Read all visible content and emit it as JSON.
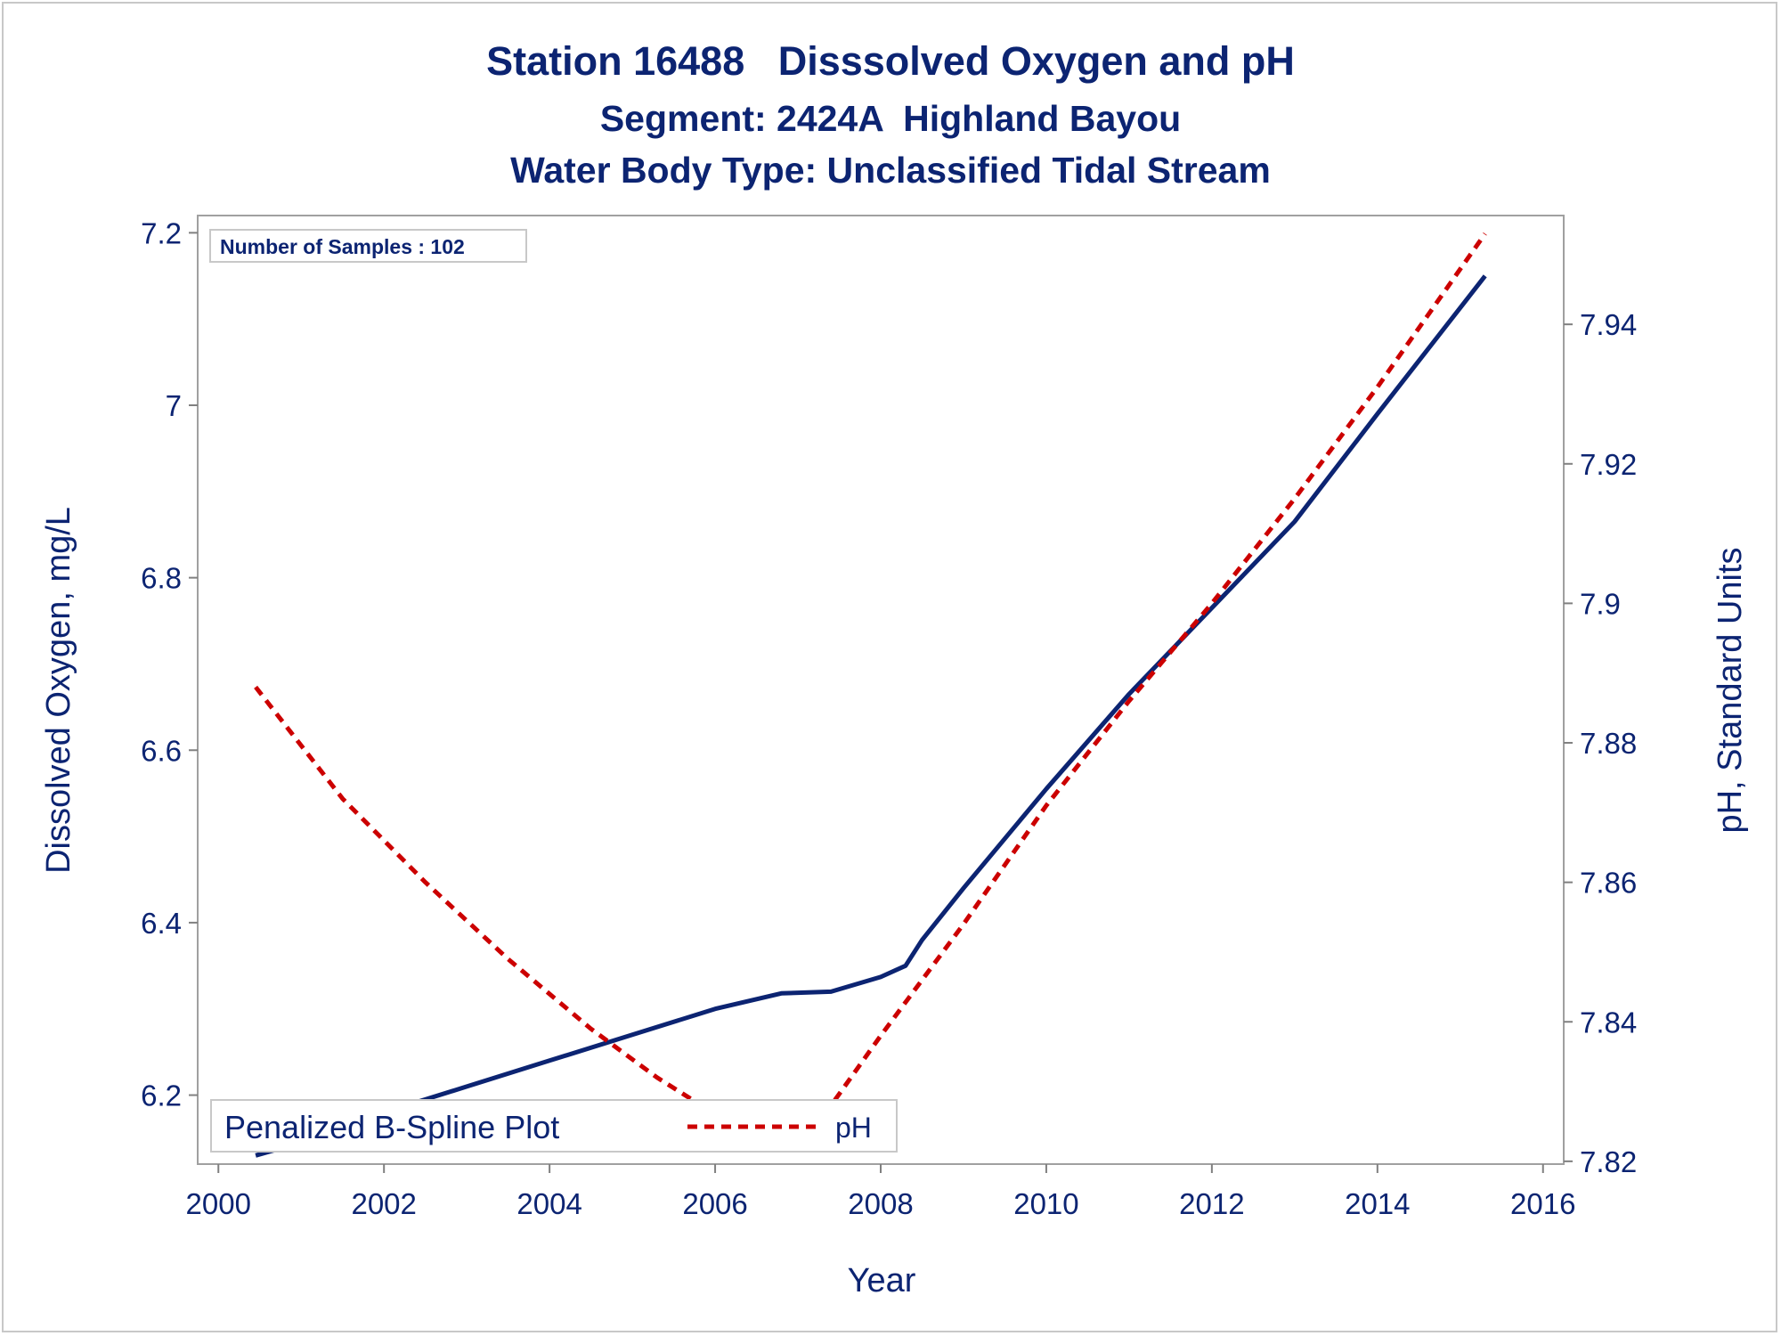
{
  "chart_data": {
    "type": "line",
    "title": "Station 16488   Disssolved Oxygen and pH",
    "subtitle": "Segment: 2424A  Highland Bayou",
    "subtitle2": "Water Body Type: Unclassified Tidal Stream",
    "annotation": "Number of Samples : 102",
    "xlabel": "Year",
    "ylabel": "Dissolved Oxygen, mg/L",
    "y2label": "pH, Standard Units",
    "xlim": [
      1999.75,
      2016.25
    ],
    "ylim": [
      6.12,
      7.22
    ],
    "y2lim": [
      7.8196,
      7.9556
    ],
    "xticks": [
      "2000",
      "2002",
      "2004",
      "2006",
      "2008",
      "2010",
      "2012",
      "2014",
      "2016"
    ],
    "yticks": [
      "6.2",
      "6.4",
      "6.6",
      "6.8",
      "7",
      "7.2"
    ],
    "y2ticks": [
      "7.82",
      "7.84",
      "7.86",
      "7.88",
      "7.9",
      "7.92",
      "7.94"
    ],
    "grid": false,
    "legend_placement": "bottom-left inside",
    "legend_title": "Penalized B-Spline Plot",
    "series": [
      {
        "name": "",
        "axis": "left",
        "style": "solid",
        "color": "#0c2472",
        "x": [
          2000.45,
          2001.0,
          2002.0,
          2003.0,
          2004.0,
          2005.0,
          2006.0,
          2006.8,
          2007.4,
          2008.0,
          2008.3,
          2008.5,
          2009.0,
          2010.0,
          2011.0,
          2012.0,
          2013.0,
          2014.0,
          2015.3
        ],
        "y": [
          6.13,
          6.145,
          6.18,
          6.21,
          6.24,
          6.27,
          6.3,
          6.318,
          6.32,
          6.337,
          6.35,
          6.38,
          6.44,
          6.555,
          6.665,
          6.765,
          6.865,
          6.99,
          7.15
        ]
      },
      {
        "name": "pH",
        "axis": "right",
        "style": "dashed",
        "color": "#cc0000",
        "x": [
          2000.45,
          2001.5,
          2002.5,
          2003.5,
          2004.5,
          2005.3,
          2005.9,
          2006.5,
          2006.9,
          2007.4,
          2008.0,
          2009.0,
          2010.0,
          2011.0,
          2012.0,
          2013.0,
          2014.0,
          2015.3
        ],
        "y": [
          7.888,
          7.872,
          7.86,
          7.849,
          7.839,
          7.832,
          7.8275,
          7.8255,
          7.8245,
          7.828,
          7.838,
          7.854,
          7.871,
          7.886,
          7.9,
          7.915,
          7.931,
          7.953
        ]
      }
    ]
  }
}
